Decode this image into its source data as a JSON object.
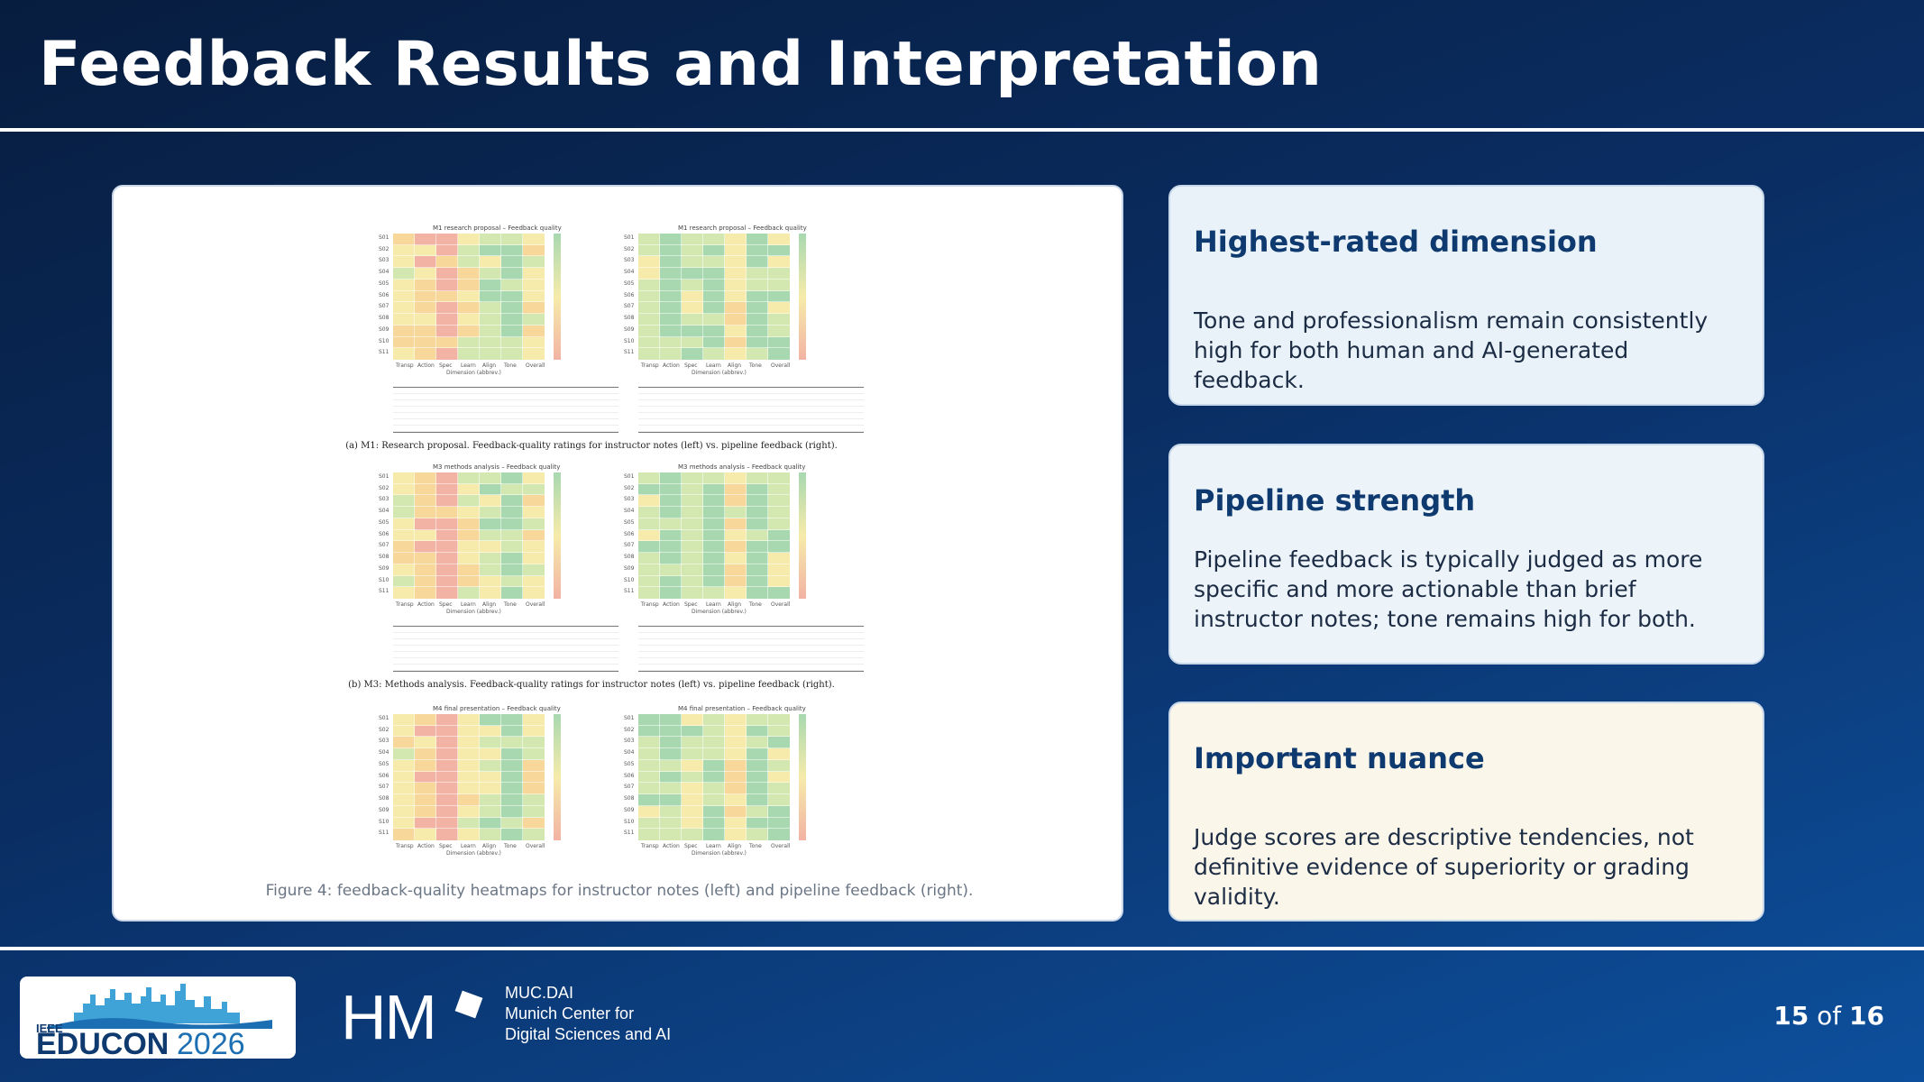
{
  "slide": {
    "title": "Feedback Results and Interpretation",
    "page_current": "15",
    "page_sep": "of",
    "page_total": "16"
  },
  "figure": {
    "caption": "Figure 4: feedback-quality heatmaps for instructor notes (left) and pipeline feedback (right).",
    "panels": [
      {
        "left_title": "M1 research proposal – Feedback quality",
        "right_title": "M1 research proposal – Feedback quality",
        "subcaption": "(a) M1: Research proposal. Feedback-quality ratings for instructor notes (left) vs. pipeline feedback (right)."
      },
      {
        "left_title": "M3 methods analysis – Feedback quality",
        "right_title": "M3 methods analysis – Feedback quality",
        "subcaption": "(b) M3: Methods analysis. Feedback-quality ratings for instructor notes (left) vs. pipeline feedback (right)."
      },
      {
        "left_title": "M4 final presentation – Feedback quality",
        "right_title": "M4 final presentation – Feedback quality",
        "subcaption": ""
      }
    ],
    "x_categories": [
      "Transp",
      "Action",
      "Spec",
      "Learn",
      "Align",
      "Tone",
      "Overall"
    ],
    "x_axis_label": "Dimension (abbrev.)",
    "student_ids_left": [
      "S01",
      "S02",
      "S03",
      "S04",
      "S05",
      "S06",
      "S07",
      "S08",
      "S09",
      "S10",
      "S11"
    ],
    "student_ids_right": [
      "S01",
      "S02",
      "S03",
      "S04",
      "S05",
      "S06",
      "S07",
      "S08",
      "S09",
      "S10",
      "S11"
    ],
    "colors": {
      "high": "#a8d8b0",
      "mid_high": "#d3e8b0",
      "mid": "#f6ebaa",
      "mid_low": "#f8d79a",
      "low": "#f2b3a4"
    }
  },
  "cards": [
    {
      "heading": "Highest-rated dimension",
      "body": "Tone and professionalism remain consistently high for both human and AI-generated feedback."
    },
    {
      "heading": "Pipeline strength",
      "body": "Pipeline feedback is typically judged as more specific and more actionable than brief instructor notes; tone remains high for both."
    },
    {
      "heading": "Important nuance",
      "body": "Judge scores are descriptive tendencies, not definitive evidence of superiority or grading validity."
    }
  ],
  "footer": {
    "educon_small": "IEEE",
    "educon_name": "EDUCON",
    "educon_year": "2026",
    "hm_logo": "HM",
    "muc_lines": [
      "MUC.DAI",
      "Munich Center for",
      "Digital Sciences and AI"
    ]
  }
}
